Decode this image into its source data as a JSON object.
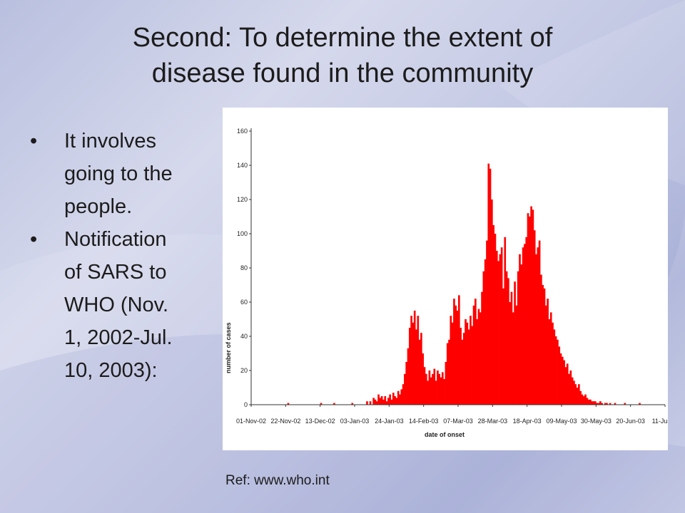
{
  "slide": {
    "title_lines": [
      "Second: To determine the extent of",
      "disease found in the community"
    ],
    "bullets": [
      {
        "lines": [
          "It involves",
          "going to the",
          "people."
        ]
      },
      {
        "lines": [
          "Notification",
          "of SARS to",
          "WHO (Nov.",
          "1, 2002-Jul.",
          "10, 2003):"
        ]
      }
    ],
    "bullet_glyph": "•",
    "reference": "Ref: www.who.int"
  },
  "chart_data": {
    "type": "bar",
    "title": "",
    "xlabel": "date of onset",
    "ylabel": "number of cases",
    "ylim": [
      0,
      160
    ],
    "yticks": [
      0,
      20,
      40,
      60,
      80,
      100,
      120,
      140,
      160
    ],
    "x_start": "01-Nov-02",
    "x_end": "11-Jul-03",
    "xtick_labels": [
      "01-Nov-02",
      "22-Nov-02",
      "13-Dec-02",
      "03-Jan-03",
      "24-Jan-03",
      "14-Feb-03",
      "07-Mar-03",
      "28-Mar-03",
      "18-Apr-03",
      "09-May-03",
      "30-May-03",
      "20-Jun-03",
      "11-Jul-03"
    ],
    "bar_color": "#ff0000",
    "grid": false,
    "legend": "none",
    "series": [
      {
        "values": [
          0,
          0,
          0,
          0,
          0,
          0,
          0,
          0,
          0,
          0,
          0,
          0,
          0,
          0,
          0,
          0,
          0,
          0,
          0,
          0,
          0,
          0,
          1,
          0,
          0,
          0,
          0,
          0,
          0,
          0,
          0,
          0,
          0,
          0,
          0,
          0,
          0,
          0,
          0,
          0,
          0,
          0,
          1,
          0,
          0,
          0,
          0,
          0,
          0,
          0,
          1,
          0,
          0,
          0,
          0,
          0,
          0,
          0,
          0,
          0,
          0,
          1,
          0,
          0,
          0,
          0,
          0,
          0,
          0,
          0,
          2,
          0,
          2,
          0,
          4,
          3,
          2,
          6,
          4,
          5,
          3,
          5,
          2,
          4,
          6,
          3,
          7,
          5,
          4,
          8,
          6,
          9,
          12,
          18,
          25,
          33,
          45,
          52,
          48,
          55,
          44,
          52,
          38,
          42,
          30,
          22,
          18,
          14,
          20,
          16,
          18,
          21,
          14,
          20,
          18,
          16,
          19,
          15,
          25,
          36,
          38,
          52,
          48,
          62,
          58,
          55,
          64,
          45,
          38,
          42,
          50,
          48,
          44,
          52,
          46,
          58,
          62,
          50,
          56,
          54,
          66,
          78,
          85,
          96,
          141,
          138,
          120,
          105,
          100,
          90,
          84,
          88,
          92,
          68,
          98,
          78,
          74,
          60,
          66,
          54,
          72,
          58,
          78,
          88,
          82,
          92,
          94,
          98,
          112,
          110,
          116,
          114,
          102,
          88,
          92,
          96,
          76,
          70,
          68,
          58,
          62,
          50,
          54,
          48,
          44,
          40,
          38,
          34,
          30,
          28,
          26,
          22,
          24,
          18,
          20,
          16,
          14,
          12,
          10,
          12,
          8,
          6,
          5,
          6,
          4,
          3,
          3,
          2,
          2,
          2,
          1,
          1,
          2,
          1,
          0,
          1,
          1,
          0,
          1,
          0,
          0,
          1,
          0,
          0,
          0,
          0,
          0,
          1,
          0,
          0,
          0,
          0,
          0,
          0,
          0,
          0,
          1,
          0,
          0,
          0,
          0,
          0,
          0,
          0,
          0,
          0,
          0,
          0,
          0,
          0,
          0,
          0
        ]
      }
    ]
  }
}
